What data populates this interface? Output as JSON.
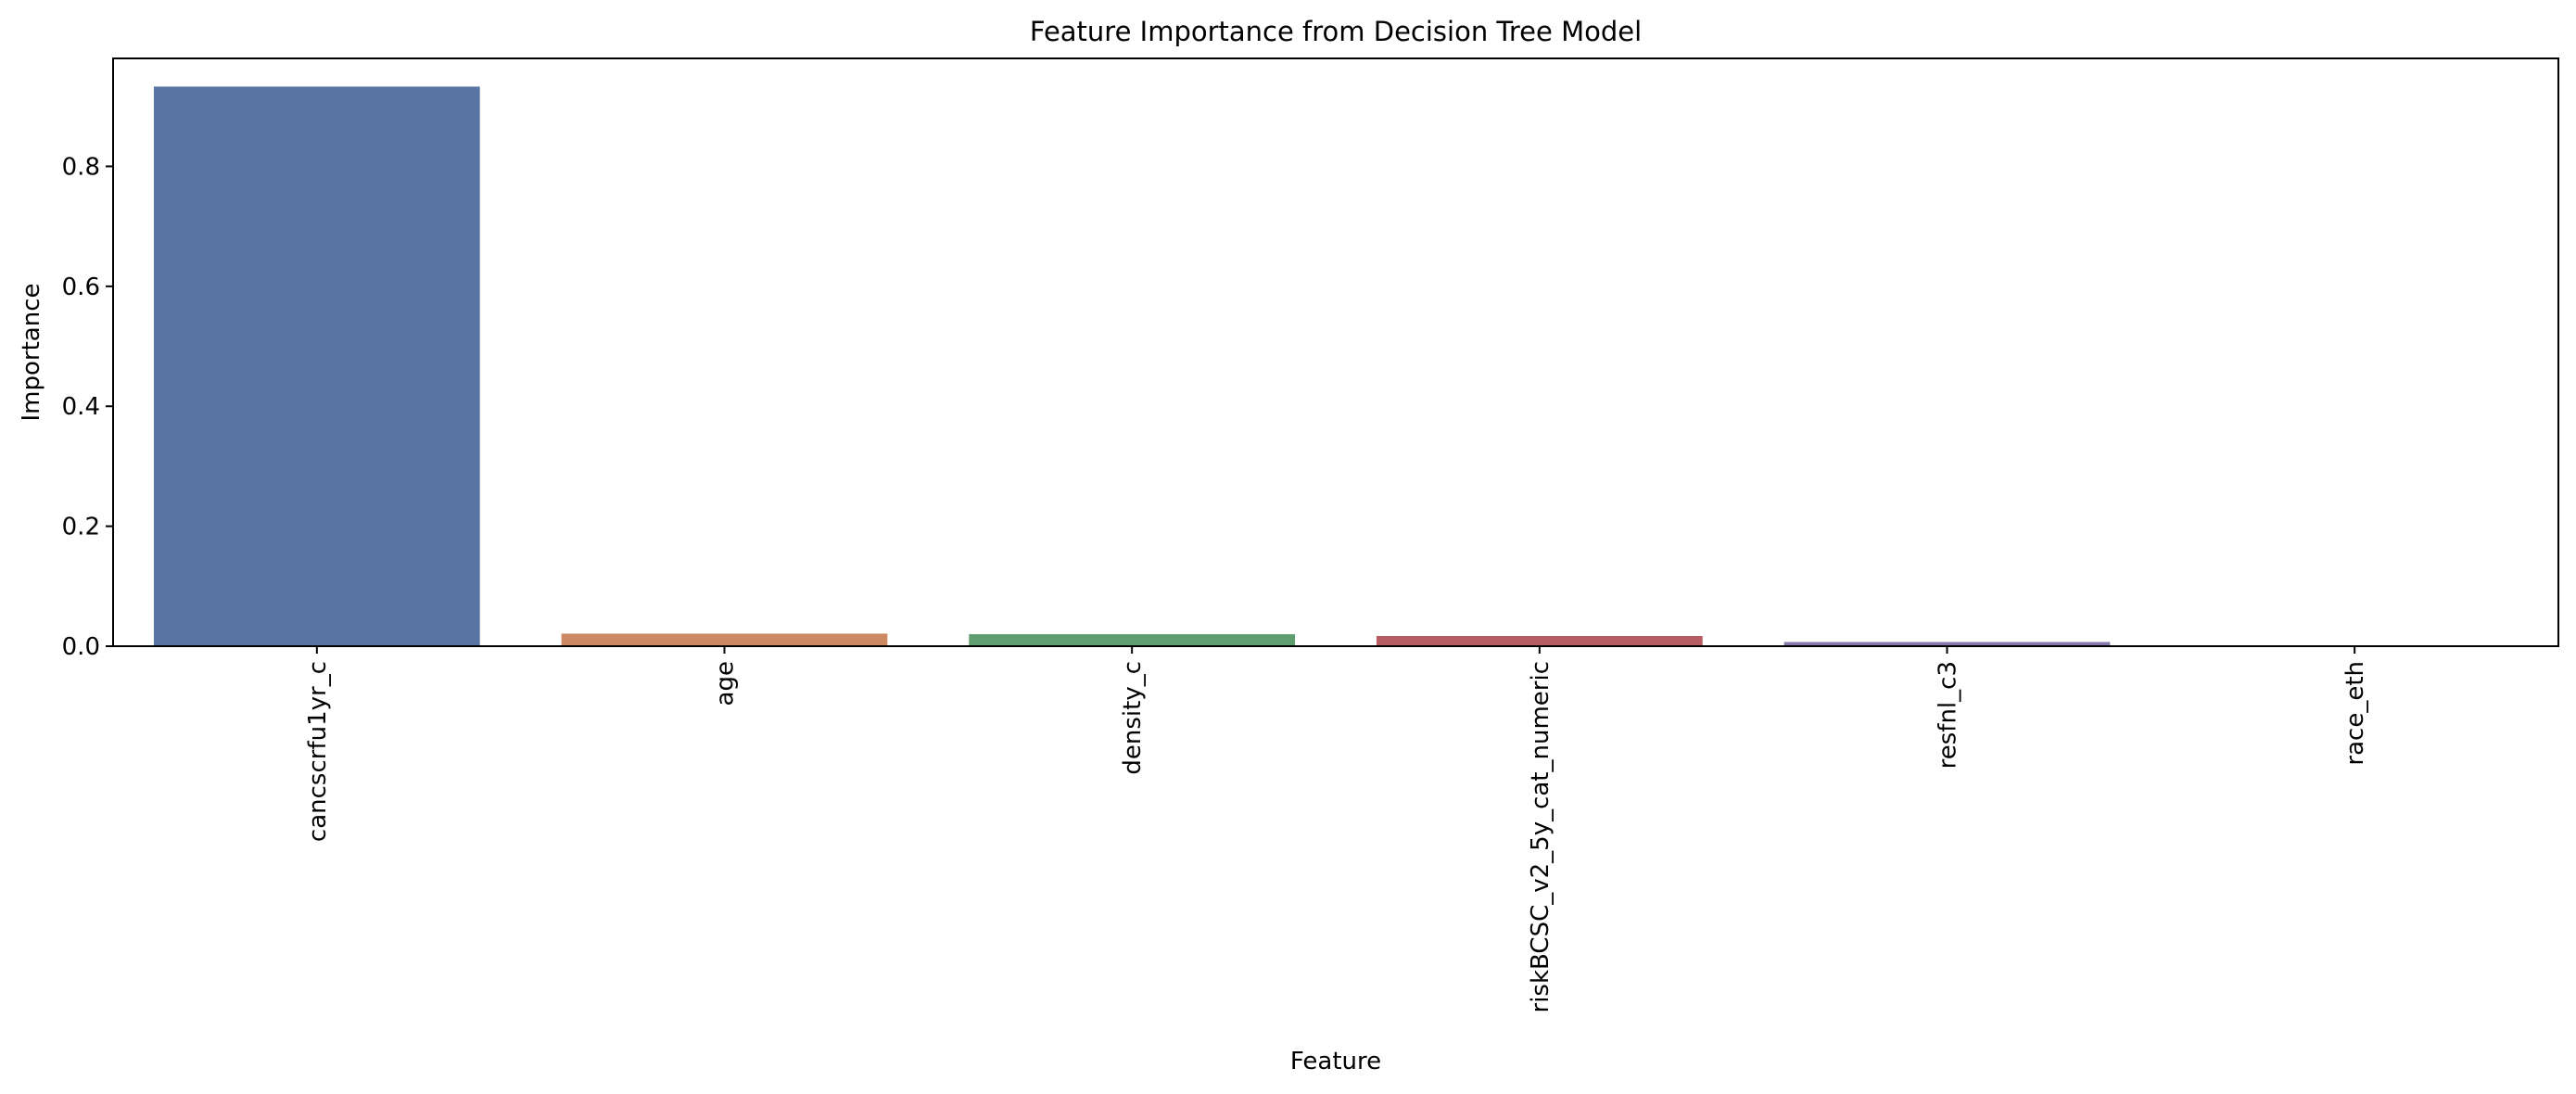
{
  "chart_data": {
    "type": "bar",
    "title": "Feature Importance from Decision Tree Model",
    "xlabel": "Feature",
    "ylabel": "Importance",
    "categories": [
      "cancscrfu1yr_c",
      "age",
      "density_c",
      "riskBCSC_v2_5y_cat_numeric",
      "resfnl_c3",
      "race_eth"
    ],
    "values": [
      0.933,
      0.021,
      0.02,
      0.017,
      0.007,
      0.001
    ],
    "colors": [
      "#5875a4",
      "#cc8963",
      "#5f9e6e",
      "#b55d60",
      "#857aab",
      "#8d7866"
    ],
    "yticks": [
      0.0,
      0.2,
      0.4,
      0.6,
      0.8
    ],
    "ytick_labels": [
      "0.0",
      "0.2",
      "0.4",
      "0.6",
      "0.8"
    ],
    "ylim": [
      0,
      0.98
    ],
    "grid": false,
    "legend": "none"
  }
}
